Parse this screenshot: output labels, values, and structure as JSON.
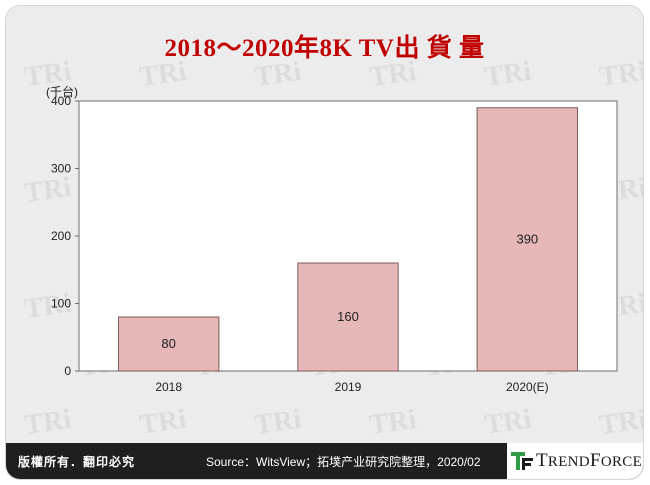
{
  "title": "2018～2020年8K TV出 貨 量",
  "footer": {
    "copyright": "版權所有．翻印必究",
    "source": "Source：WitsView；拓墣产业研究院整理，2020/02",
    "brand": "TRENDFORCE"
  },
  "colors": {
    "title": "#c00000",
    "bar_fill": "#e5b7b7",
    "bar_stroke": "#7a5a5a",
    "footer_bg": "#1f1f1f",
    "brand_green": "#2e9a46"
  },
  "chart_data": {
    "type": "bar",
    "title": "2018～2020年8K TV出 貨 量",
    "categories": [
      "2018",
      "2019",
      "2020(E)"
    ],
    "values": [
      80,
      160,
      390
    ],
    "data_labels": [
      "80",
      "160",
      "390"
    ],
    "ylabel": "(千台)",
    "xlabel": "",
    "ylim": [
      0,
      400
    ],
    "yticks": [
      0,
      100,
      200,
      300,
      400
    ],
    "grid": false,
    "legend": "none"
  }
}
